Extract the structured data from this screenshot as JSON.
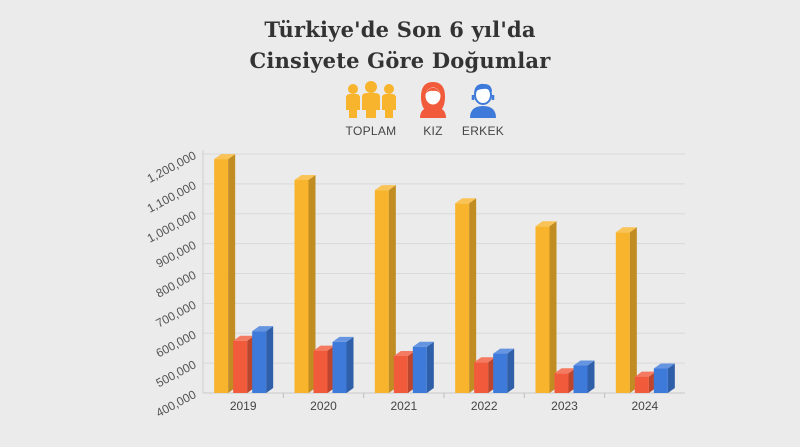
{
  "title_lines": [
    "Türkiye'de Son 6 yıl'da",
    "Cinsiyete Göre Doğumlar"
  ],
  "legend": [
    {
      "label": "TOPLAM",
      "icon": "group-icon",
      "color": "#f7b42c"
    },
    {
      "label": "KIZ",
      "icon": "girl-icon",
      "color": "#f15a3a"
    },
    {
      "label": "ERKEK",
      "icon": "boy-icon",
      "color": "#3e7ad9"
    }
  ],
  "chart_data": {
    "type": "bar",
    "categories": [
      "2019",
      "2020",
      "2021",
      "2022",
      "2023",
      "2024"
    ],
    "series": [
      {
        "name": "TOPLAM",
        "color": "#f7b42c",
        "values": [
          1183000,
          1113000,
          1079000,
          1035000,
          958000,
          938000
        ]
      },
      {
        "name": "KIZ",
        "color": "#f15a3a",
        "values": [
          575000,
          542000,
          524000,
          503000,
          466000,
          455000
        ]
      },
      {
        "name": "ERKEK",
        "color": "#3e7ad9",
        "values": [
          607000,
          571000,
          555000,
          532000,
          492000,
          482000
        ]
      }
    ],
    "yticks": [
      "400,000",
      "500,000",
      "600,000",
      "700,000",
      "800,000",
      "900,000",
      "1,000,000",
      "1,100,000",
      "1,200,000"
    ],
    "ylim": [
      400000,
      1200000
    ],
    "grid": true,
    "legend_position": "top-center"
  }
}
